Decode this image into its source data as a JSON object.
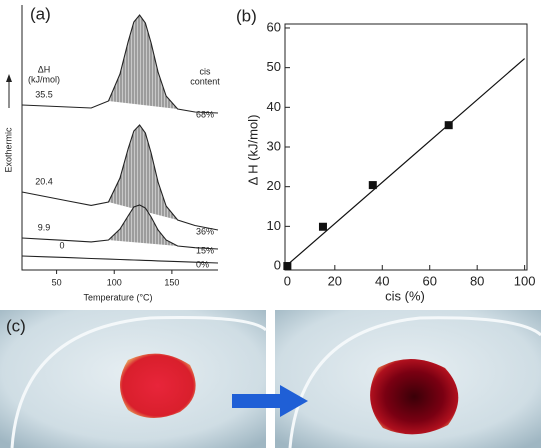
{
  "chart_data": [
    {
      "type": "line",
      "panel_label": "(a)",
      "xlabel": "Temperature (°C)",
      "ylabel": "Exothermic",
      "left_header": [
        "ΔH",
        "(kJ/mol)"
      ],
      "right_header": [
        "cis",
        "content"
      ],
      "xlim": [
        20,
        190
      ],
      "xticks": [
        50,
        100,
        150
      ],
      "x": [
        20,
        40,
        60,
        80,
        95,
        105,
        112,
        117,
        122,
        127,
        132,
        138,
        145,
        155,
        170,
        190
      ],
      "series": [
        {
          "name": "68%",
          "enthalpy": 35.5,
          "color": "#222222",
          "values": [
            8,
            7,
            6,
            5,
            12,
            39,
            71,
            91,
            98,
            90,
            70,
            41,
            17,
            4,
            1,
            0
          ]
        },
        {
          "name": "36%",
          "enthalpy": 20.4,
          "color": "#222222",
          "values": [
            38,
            33.5,
            29,
            24.6,
            28,
            52,
            81,
            99,
            105,
            97,
            77,
            48,
            24,
            10,
            4.5,
            0
          ]
        },
        {
          "name": "15%",
          "enthalpy": 9.9,
          "color": "#222222",
          "values": [
            11,
            9.7,
            8.4,
            7.1,
            9,
            20,
            33,
            42,
            44,
            41,
            32,
            19,
            9,
            3,
            1.3,
            0
          ]
        },
        {
          "name": "0%",
          "enthalpy": 0,
          "color": "#222222",
          "values": [
            7,
            6.2,
            5.4,
            4.5,
            3.9,
            3.5,
            3.2,
            3,
            2.8,
            2.6,
            2.4,
            2.1,
            1.8,
            1.4,
            0.8,
            0
          ]
        }
      ]
    },
    {
      "type": "scatter",
      "panel_label": "(b)",
      "xlabel": "cis (%)",
      "ylabel": "Δ H (kJ/mol)",
      "xlim": [
        -1,
        101
      ],
      "ylim": [
        -1,
        61
      ],
      "xticks": [
        0,
        20,
        40,
        60,
        80,
        100
      ],
      "yticks": [
        0,
        10,
        20,
        30,
        40,
        50,
        60
      ],
      "x": [
        0,
        15,
        36,
        68
      ],
      "values": [
        0,
        9.9,
        20.4,
        35.5
      ],
      "color": "#111111",
      "fit": {
        "x": [
          0,
          100
        ],
        "values": [
          0.3,
          52.3
        ]
      }
    }
  ],
  "panel_c": {
    "label": "(c)"
  }
}
